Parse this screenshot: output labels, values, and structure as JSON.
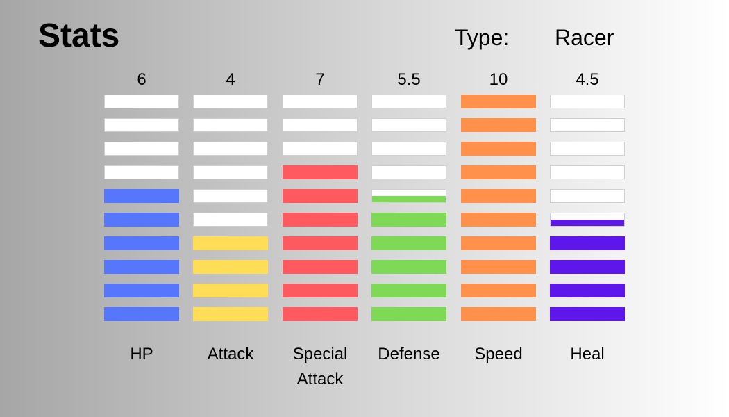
{
  "header": {
    "title": "Stats",
    "type_label": "Type:",
    "type_value": "Racer"
  },
  "max_segments": 10,
  "stats": [
    {
      "label": "HP",
      "value_text": "6",
      "value": 6,
      "color": "#5677fc"
    },
    {
      "label": "Attack",
      "value_text": "4",
      "value": 4,
      "color": "#ffdd57"
    },
    {
      "label": "Special Attack",
      "value_text": "7",
      "value": 7,
      "color": "#ff5a5f"
    },
    {
      "label": "Defense",
      "value_text": "5.5",
      "value": 5.5,
      "color": "#7ed957"
    },
    {
      "label": "Speed",
      "value_text": "10",
      "value": 10,
      "color": "#ff914d"
    },
    {
      "label": "Heal",
      "value_text": "4.5",
      "value": 4.5,
      "color": "#5e17eb"
    }
  ]
}
